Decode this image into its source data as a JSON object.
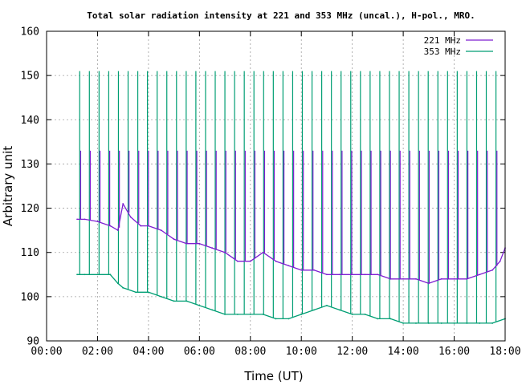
{
  "chart_data": {
    "type": "line",
    "title": "Total solar radiation intensity at 221 and 353 MHz (uncal.), H-pol., MRO.",
    "xlabel": "Time (UT)",
    "ylabel": "Arbitrary unit",
    "xlim": [
      0,
      18
    ],
    "ylim": [
      90,
      160
    ],
    "xticks": [
      {
        "value": 0,
        "label": "00:00"
      },
      {
        "value": 2,
        "label": "02:00"
      },
      {
        "value": 4,
        "label": "04:00"
      },
      {
        "value": 6,
        "label": "06:00"
      },
      {
        "value": 8,
        "label": "08:00"
      },
      {
        "value": 10,
        "label": "10:00"
      },
      {
        "value": 12,
        "label": "12:00"
      },
      {
        "value": 14,
        "label": "14:00"
      },
      {
        "value": 16,
        "label": "16:00"
      },
      {
        "value": 18,
        "label": "18:00"
      }
    ],
    "yticks": [
      {
        "value": 90,
        "label": "90"
      },
      {
        "value": 100,
        "label": "100"
      },
      {
        "value": 110,
        "label": "110"
      },
      {
        "value": 120,
        "label": "120"
      },
      {
        "value": 130,
        "label": "130"
      },
      {
        "value": 140,
        "label": "140"
      },
      {
        "value": 150,
        "label": "150"
      },
      {
        "value": 160,
        "label": "160"
      }
    ],
    "grid": true,
    "legend_position": "top-right",
    "calibration_spikes": {
      "start": 1.3,
      "interval": 0.38,
      "end": 17.9,
      "peak_221": 133,
      "peak_353": 151
    },
    "series": [
      {
        "name": "221 MHz",
        "color": "#7e1fd1",
        "x": [
          1.2,
          1.5,
          2.0,
          2.5,
          2.8,
          3.0,
          3.3,
          3.7,
          4.0,
          4.5,
          5.0,
          5.5,
          6.0,
          6.5,
          7.0,
          7.5,
          8.0,
          8.5,
          9.0,
          9.5,
          10.0,
          10.5,
          11.0,
          11.5,
          12.0,
          12.5,
          13.0,
          13.5,
          14.0,
          14.5,
          15.0,
          15.5,
          16.0,
          16.5,
          17.0,
          17.5,
          17.8,
          18.0
        ],
        "values": [
          117.5,
          117.5,
          117,
          116,
          115,
          121,
          118,
          116,
          116,
          115,
          113,
          112,
          112,
          111,
          110,
          108,
          108,
          110,
          108,
          107,
          106,
          106,
          105,
          105,
          105,
          105,
          105,
          104,
          104,
          104,
          103,
          104,
          104,
          104,
          105,
          106,
          108,
          111
        ]
      },
      {
        "name": "353 MHz",
        "color": "#009e73",
        "x": [
          1.2,
          1.5,
          2.0,
          2.5,
          2.8,
          3.0,
          3.5,
          4.0,
          4.5,
          5.0,
          5.5,
          6.0,
          6.5,
          7.0,
          7.5,
          8.0,
          8.5,
          9.0,
          9.5,
          10.0,
          10.5,
          11.0,
          11.5,
          12.0,
          12.5,
          13.0,
          13.5,
          14.0,
          14.5,
          15.0,
          15.5,
          16.0,
          16.5,
          17.0,
          17.5,
          18.0
        ],
        "values": [
          105,
          105,
          105,
          105,
          103,
          102,
          101,
          101,
          100,
          99,
          99,
          98,
          97,
          96,
          96,
          96,
          96,
          95,
          95,
          96,
          97,
          98,
          97,
          96,
          96,
          95,
          95,
          94,
          94,
          94,
          94,
          94,
          94,
          94,
          94,
          95
        ]
      }
    ]
  }
}
